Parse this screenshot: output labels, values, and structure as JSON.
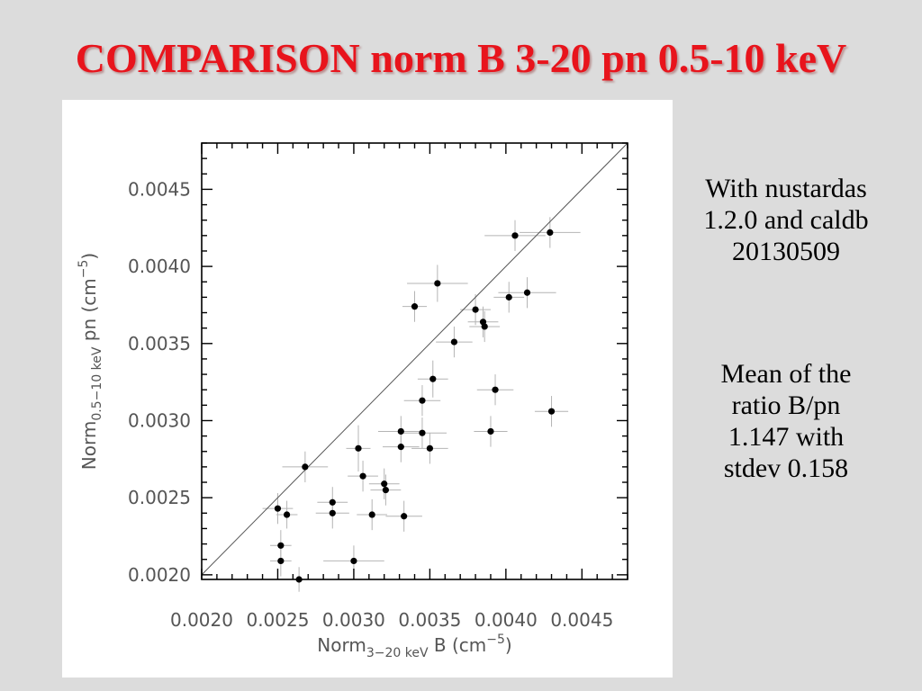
{
  "title": "COMPARISON norm B 3-20 pn 0.5-10 keV",
  "notes": [
    [
      "With nustardas",
      "1.2.0 and caldb",
      "20130509"
    ],
    [
      "Mean of the",
      "ratio B/pn",
      "1.147 with",
      "stdev 0.158"
    ]
  ],
  "chart_data": {
    "type": "scatter",
    "xlabel": {
      "main": "Norm",
      "sub": "3−20 keV",
      "rest": " B (cm",
      "exp": "−5",
      "close": ")"
    },
    "ylabel": {
      "main": "Norm",
      "sub": "0.5−10 keV",
      "rest": " pn (cm",
      "exp": "−5",
      "close": ")"
    },
    "xlim": [
      0.002,
      0.0048
    ],
    "ylim": [
      0.00197,
      0.0048
    ],
    "xticks": [
      0.002,
      0.0025,
      0.003,
      0.0035,
      0.004,
      0.0045
    ],
    "xtick_labels": [
      "0.0020",
      "0.0025",
      "0.0030",
      "0.0035",
      "0.0040",
      "0.0045"
    ],
    "yticks": [
      0.002,
      0.0025,
      0.003,
      0.0035,
      0.004,
      0.0045
    ],
    "ytick_labels": [
      "0.0020",
      "0.0025",
      "0.0030",
      "0.0035",
      "0.0040",
      "0.0045"
    ],
    "reference_line": "y = x",
    "grid": false,
    "marker_color": "#000000",
    "errorbar_color": "#b4b4b4",
    "points": [
      {
        "x": 0.0025,
        "y": 0.00243,
        "xerr": 0.0001,
        "yerr": 0.0001
      },
      {
        "x": 0.00252,
        "y": 0.00219,
        "xerr": 7e-05,
        "yerr": 0.0001
      },
      {
        "x": 0.00252,
        "y": 0.00209,
        "xerr": 7e-05,
        "yerr": 0.0001
      },
      {
        "x": 0.00256,
        "y": 0.00239,
        "xerr": 7e-05,
        "yerr": 9e-05
      },
      {
        "x": 0.00264,
        "y": 0.00197,
        "xerr": 8e-05,
        "yerr": 8e-05
      },
      {
        "x": 0.00268,
        "y": 0.0027,
        "xerr": 0.00015,
        "yerr": 0.0001
      },
      {
        "x": 0.00286,
        "y": 0.00247,
        "xerr": 0.0001,
        "yerr": 0.0001
      },
      {
        "x": 0.00286,
        "y": 0.0024,
        "xerr": 0.00011,
        "yerr": 0.0001
      },
      {
        "x": 0.003,
        "y": 0.00209,
        "xerr": 0.0002,
        "yerr": 0.0001
      },
      {
        "x": 0.00303,
        "y": 0.00282,
        "xerr": 8e-05,
        "yerr": 0.00015
      },
      {
        "x": 0.00306,
        "y": 0.00264,
        "xerr": 0.0001,
        "yerr": 0.0001
      },
      {
        "x": 0.00312,
        "y": 0.00239,
        "xerr": 0.0001,
        "yerr": 0.0001
      },
      {
        "x": 0.0032,
        "y": 0.00259,
        "xerr": 0.0001,
        "yerr": 0.0001
      },
      {
        "x": 0.00321,
        "y": 0.00255,
        "xerr": 0.0001,
        "yerr": 0.0001
      },
      {
        "x": 0.00333,
        "y": 0.00238,
        "xerr": 0.00012,
        "yerr": 0.0001
      },
      {
        "x": 0.00331,
        "y": 0.00293,
        "xerr": 0.00015,
        "yerr": 0.0001
      },
      {
        "x": 0.00331,
        "y": 0.00283,
        "xerr": 0.00012,
        "yerr": 0.0001
      },
      {
        "x": 0.00345,
        "y": 0.00313,
        "xerr": 0.00012,
        "yerr": 0.0001
      },
      {
        "x": 0.00345,
        "y": 0.00292,
        "xerr": 0.00016,
        "yerr": 0.0001
      },
      {
        "x": 0.0035,
        "y": 0.00282,
        "xerr": 0.00012,
        "yerr": 0.0001
      },
      {
        "x": 0.00352,
        "y": 0.00327,
        "xerr": 0.0001,
        "yerr": 0.00012
      },
      {
        "x": 0.0034,
        "y": 0.00374,
        "xerr": 8e-05,
        "yerr": 0.0001
      },
      {
        "x": 0.00355,
        "y": 0.00389,
        "xerr": 0.0002,
        "yerr": 0.00012
      },
      {
        "x": 0.00366,
        "y": 0.00351,
        "xerr": 0.00012,
        "yerr": 0.0001
      },
      {
        "x": 0.0038,
        "y": 0.00372,
        "xerr": 0.0001,
        "yerr": 0.0001
      },
      {
        "x": 0.00385,
        "y": 0.00364,
        "xerr": 0.0001,
        "yerr": 0.0001
      },
      {
        "x": 0.00386,
        "y": 0.00361,
        "xerr": 0.0001,
        "yerr": 0.0001
      },
      {
        "x": 0.0039,
        "y": 0.00293,
        "xerr": 0.00011,
        "yerr": 0.0001
      },
      {
        "x": 0.00393,
        "y": 0.0032,
        "xerr": 0.00012,
        "yerr": 0.0001
      },
      {
        "x": 0.00402,
        "y": 0.0038,
        "xerr": 0.0001,
        "yerr": 0.0001
      },
      {
        "x": 0.00406,
        "y": 0.0042,
        "xerr": 0.0002,
        "yerr": 0.0001
      },
      {
        "x": 0.00414,
        "y": 0.00383,
        "xerr": 0.00019,
        "yerr": 0.0001
      },
      {
        "x": 0.00429,
        "y": 0.00422,
        "xerr": 0.0002,
        "yerr": 0.0001
      },
      {
        "x": 0.0043,
        "y": 0.00306,
        "xerr": 0.00011,
        "yerr": 0.0001
      }
    ]
  }
}
